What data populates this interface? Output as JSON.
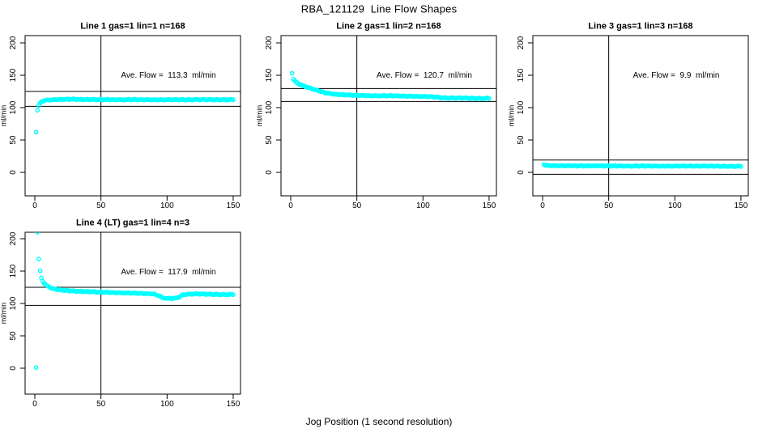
{
  "figure": {
    "title": "RBA_121129  Line Flow Shapes",
    "xlabel": "Jog Position (1 second resolution)",
    "background_color": "#FFFFFF",
    "marker_color": "#00FFFF",
    "line_color": "#000000"
  },
  "chart_data": [
    {
      "type": "scatter",
      "title": "Line 1 gas=1 lin=1 n=168",
      "annotation": "Ave. Flow =  113.3  ml/min",
      "ave_flow_ml_min": 113.3,
      "n": 168,
      "ylabel": "ml/min",
      "xticks": [
        0,
        50,
        100,
        150
      ],
      "yticks": [
        0,
        50,
        100,
        150,
        200
      ],
      "xlim": [
        -6,
        156
      ],
      "ylim": [
        -36,
        211
      ],
      "grid": false,
      "vline_x": 50,
      "hlines": [
        125,
        102
      ],
      "points": [
        [
          1,
          62
        ],
        [
          2,
          96
        ],
        [
          3,
          103
        ],
        [
          4,
          106.5
        ],
        [
          5,
          108.5
        ],
        [
          6,
          110
        ],
        [
          8,
          111
        ],
        [
          10,
          111.5
        ],
        [
          14,
          112
        ],
        [
          20,
          112.5
        ],
        [
          28,
          113
        ],
        [
          36,
          112.5
        ],
        [
          45,
          112.5
        ],
        [
          55,
          112.5
        ],
        [
          70,
          112.5
        ],
        [
          85,
          112.5
        ],
        [
          100,
          112.5
        ],
        [
          115,
          112.5
        ],
        [
          130,
          112.5
        ],
        [
          150,
          112.5
        ]
      ]
    },
    {
      "type": "scatter",
      "title": "Line 2 gas=1 lin=2 n=168",
      "annotation": "Ave. Flow =  120.7  ml/min",
      "ave_flow_ml_min": 120.7,
      "n": 168,
      "ylabel": "ml/min",
      "xticks": [
        0,
        50,
        100,
        150
      ],
      "yticks": [
        0,
        50,
        100,
        150,
        200
      ],
      "xlim": [
        -6,
        156
      ],
      "ylim": [
        -36,
        211
      ],
      "grid": false,
      "vline_x": 50,
      "hlines": [
        129.5,
        109.5
      ],
      "points": [
        [
          1,
          153
        ],
        [
          2,
          144
        ],
        [
          3,
          141
        ],
        [
          4,
          139
        ],
        [
          5,
          138
        ],
        [
          6,
          136.5
        ],
        [
          8,
          134.5
        ],
        [
          10,
          133
        ],
        [
          12,
          131.5
        ],
        [
          14,
          130.5
        ],
        [
          16,
          129
        ],
        [
          18,
          127.5
        ],
        [
          20,
          126.5
        ],
        [
          23,
          124.5
        ],
        [
          26,
          123
        ],
        [
          30,
          121.5
        ],
        [
          34,
          120.5
        ],
        [
          38,
          120
        ],
        [
          44,
          119.5
        ],
        [
          52,
          119
        ],
        [
          62,
          118.5
        ],
        [
          75,
          118.5
        ],
        [
          88,
          118
        ],
        [
          100,
          117.5
        ],
        [
          106,
          117
        ],
        [
          110,
          116.5
        ],
        [
          114,
          115.5
        ],
        [
          120,
          115
        ],
        [
          130,
          115
        ],
        [
          140,
          114.5
        ],
        [
          150,
          114.5
        ]
      ]
    },
    {
      "type": "scatter",
      "title": "Line 3 gas=1 lin=3 n=168",
      "annotation": "Ave. Flow =  9.9  ml/min",
      "ave_flow_ml_min": 9.9,
      "n": 168,
      "ylabel": "ml/min",
      "xticks": [
        0,
        50,
        100,
        150
      ],
      "yticks": [
        0,
        50,
        100,
        150,
        200
      ],
      "xlim": [
        -6,
        156
      ],
      "ylim": [
        -36,
        211
      ],
      "grid": false,
      "vline_x": 50,
      "hlines": [
        19,
        -3
      ],
      "points": [
        [
          1,
          12
        ],
        [
          2,
          11
        ],
        [
          3,
          10.5
        ],
        [
          6,
          10
        ],
        [
          15,
          10
        ],
        [
          30,
          10
        ],
        [
          45,
          10.2
        ],
        [
          60,
          10
        ],
        [
          75,
          10
        ],
        [
          90,
          10
        ],
        [
          105,
          10
        ],
        [
          120,
          10
        ],
        [
          135,
          9.7
        ],
        [
          150,
          9.5
        ]
      ]
    },
    {
      "type": "scatter",
      "title": "Line 4 (LT) gas=1 lin=4 n=3",
      "annotation": "Ave. Flow =  117.9  ml/min",
      "ave_flow_ml_min": 117.9,
      "n": 3,
      "ylabel": "ml/min",
      "xticks": [
        0,
        50,
        100,
        150
      ],
      "yticks": [
        0,
        50,
        100,
        150,
        200
      ],
      "xlim": [
        -6,
        156
      ],
      "ylim": [
        -40,
        210
      ],
      "grid": false,
      "vline_x": 50,
      "hlines": [
        125,
        97
      ],
      "points": [
        [
          1,
          1
        ],
        [
          2,
          210
        ],
        [
          3,
          168
        ],
        [
          4,
          150
        ],
        [
          5,
          139
        ],
        [
          6,
          134
        ],
        [
          7,
          131
        ],
        [
          8,
          129
        ],
        [
          10,
          126
        ],
        [
          12,
          124
        ],
        [
          15,
          122
        ],
        [
          18,
          121
        ],
        [
          22,
          120
        ],
        [
          26,
          119.5
        ],
        [
          30,
          119
        ],
        [
          36,
          118.5
        ],
        [
          44,
          118
        ],
        [
          52,
          117.5
        ],
        [
          60,
          117
        ],
        [
          68,
          116.5
        ],
        [
          76,
          116
        ],
        [
          84,
          115.5
        ],
        [
          90,
          115
        ],
        [
          94,
          112
        ],
        [
          97,
          109
        ],
        [
          100,
          108
        ],
        [
          104,
          108
        ],
        [
          107,
          108.5
        ],
        [
          110,
          111
        ],
        [
          112,
          113.5
        ],
        [
          115,
          114.5
        ],
        [
          122,
          115
        ],
        [
          130,
          114.5
        ],
        [
          140,
          114
        ],
        [
          150,
          114
        ]
      ]
    }
  ]
}
